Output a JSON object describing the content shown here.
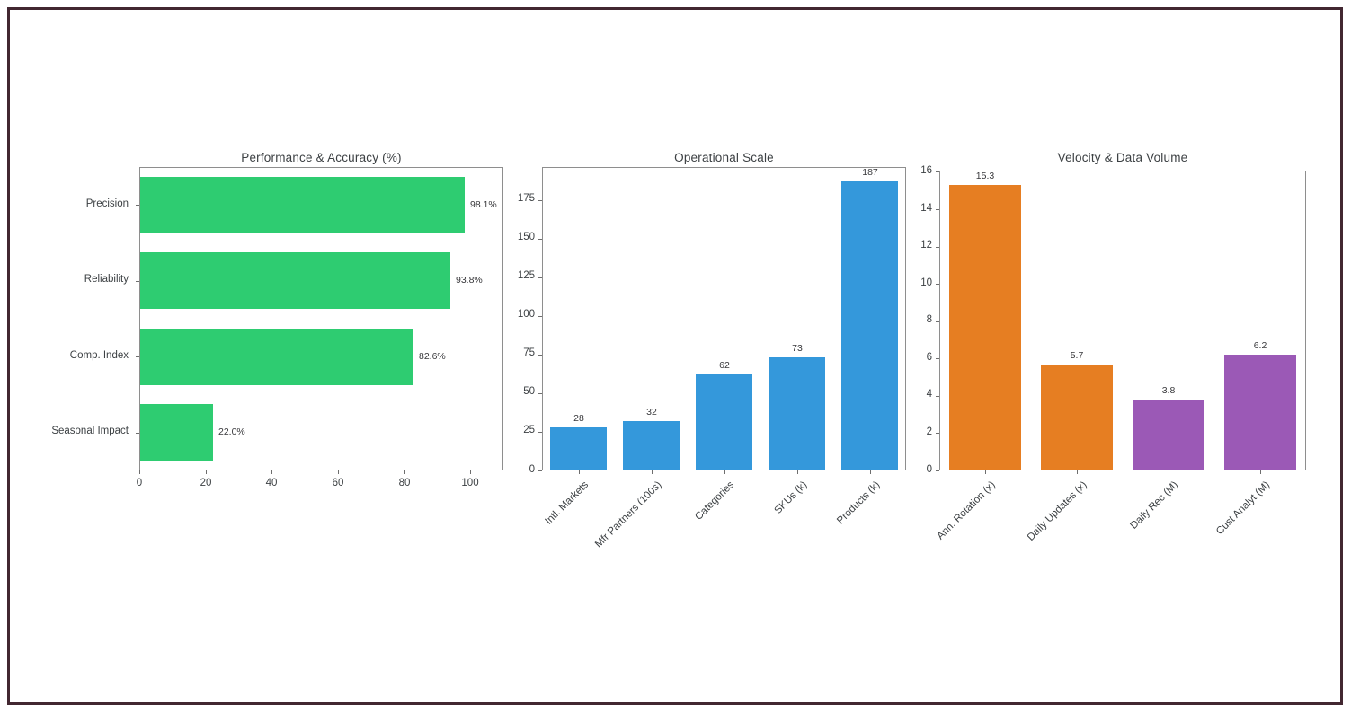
{
  "figure": {
    "background": "#ffffff",
    "frame_color": "#422731",
    "axes_edge_color": "#8e8e8e",
    "text_color": "#3c4043"
  },
  "chart_data": [
    {
      "type": "bar",
      "orientation": "horizontal",
      "title": "Performance & Accuracy (%)",
      "categories": [
        "Precision",
        "Reliability",
        "Comp. Index",
        "Seasonal Impact"
      ],
      "values": [
        98.1,
        93.8,
        82.6,
        22.0
      ],
      "value_labels": [
        "98.1%",
        "93.8%",
        "82.6%",
        "22.0%"
      ],
      "bar_color": "#2ecc71",
      "xlabel": "",
      "ylabel": "",
      "xlim": [
        0,
        110
      ],
      "xticks": [
        0,
        20,
        40,
        60,
        80,
        100
      ],
      "grid": false,
      "legend": "none"
    },
    {
      "type": "bar",
      "orientation": "vertical",
      "title": "Operational Scale",
      "categories": [
        "Intl. Markets",
        "Mfr Partners (100s)",
        "Categories",
        "SKUs (k)",
        "Products (k)"
      ],
      "values": [
        28,
        32,
        62,
        73,
        187
      ],
      "value_labels": [
        "28",
        "32",
        "62",
        "73",
        "187"
      ],
      "bar_color": "#3498db",
      "xlabel": "",
      "ylabel": "",
      "ylim": [
        0,
        196.35
      ],
      "yticks": [
        0,
        25,
        50,
        75,
        100,
        125,
        150,
        175
      ],
      "xticklabel_rotation": 45,
      "grid": false,
      "legend": "none"
    },
    {
      "type": "bar",
      "orientation": "vertical",
      "title": "Velocity & Data Volume",
      "categories": [
        "Ann. Rotation (x)",
        "Daily Updates (x)",
        "Daily Rec (M)",
        "Cust Analyt (M)"
      ],
      "values": [
        15.3,
        5.7,
        3.8,
        6.2
      ],
      "value_labels": [
        "15.3",
        "5.7",
        "3.8",
        "6.2"
      ],
      "bar_colors": [
        "#e67e22",
        "#e67e22",
        "#9b59b6",
        "#9b59b6"
      ],
      "xlabel": "",
      "ylabel": "",
      "ylim": [
        0,
        16.07
      ],
      "yticks": [
        0,
        2,
        4,
        6,
        8,
        10,
        12,
        14,
        16
      ],
      "xticklabel_rotation": 45,
      "grid": false,
      "legend": "none"
    }
  ]
}
